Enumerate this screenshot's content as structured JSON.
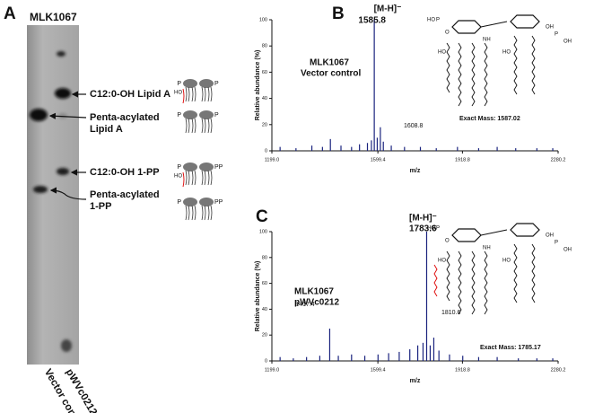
{
  "panels": [
    "A",
    "B",
    "C"
  ],
  "tlc": {
    "title": "MLK1067",
    "lanes": [
      "Vector control",
      "pWVc0212"
    ],
    "bands": [
      [
        "C12:0-OH Lipid A"
      ],
      [
        "Penta-acylated",
        "Lipid A"
      ],
      [
        "C12:0-OH 1-PP"
      ],
      [
        "Penta-acylated",
        "1-PP"
      ]
    ],
    "icon_labels": [
      "P",
      "P",
      "HO",
      "P",
      "P",
      "P",
      "PP",
      "HO",
      "P",
      "PP"
    ]
  },
  "structure_labels": [
    "HO",
    "P",
    "O",
    "OH",
    "NH",
    "P",
    "OH",
    "HO",
    "HO"
  ],
  "chart_data": [
    {
      "type": "stem",
      "ylabel": "Relative abundance (%)",
      "xlabel": "m/z",
      "strain": [
        "MLK1067",
        "Vector control"
      ],
      "peak_tag": "[M-H]⁻",
      "exact_mass": "Exact Mass:  1587.02",
      "color": "#1a237e",
      "x": [
        1230,
        1290,
        1350,
        1390,
        1420,
        1460,
        1500,
        1530,
        1560,
        1575,
        1585.8,
        1597,
        1608.8,
        1620,
        1650,
        1700,
        1760,
        1820,
        1900,
        1980,
        2050,
        2120,
        2200,
        2260
      ],
      "values": [
        3,
        2,
        4,
        3,
        9,
        4,
        3,
        5,
        6,
        8,
        100,
        10,
        18,
        7,
        4,
        3,
        3,
        2,
        3,
        2,
        3,
        2,
        2,
        2
      ],
      "xlim": [
        1199,
        2280.2
      ],
      "xticks": [
        {
          "value": 1199,
          "label": "1199.0"
        },
        1599.4,
        1918.8,
        2280.2
      ],
      "ylim": [
        0,
        100
      ],
      "yticks": [
        0,
        20,
        40,
        60,
        80,
        100
      ]
    },
    {
      "type": "stem",
      "ylabel": "Relative abundance (%)",
      "xlabel": "m/z",
      "strain": [
        "MLK1067",
        "pWVc0212"
      ],
      "peak_tag": "[M-H]⁻",
      "exact_mass": "Exact Mass:  1785.17",
      "color": "#1a237e",
      "x": [
        1230,
        1280,
        1330,
        1380,
        1417.4,
        1450,
        1500,
        1550,
        1600,
        1640,
        1680,
        1720,
        1750,
        1770,
        1783.6,
        1797,
        1810.6,
        1830,
        1870,
        1920,
        1980,
        2050,
        2130,
        2200,
        2260
      ],
      "values": [
        3,
        2,
        3,
        4,
        25,
        4,
        5,
        4,
        5,
        6,
        7,
        9,
        12,
        14,
        100,
        12,
        18,
        8,
        5,
        4,
        3,
        3,
        2,
        2,
        2
      ],
      "xlim": [
        1199,
        2280.2
      ],
      "xticks": [
        {
          "value": 1199,
          "label": "1199.0"
        },
        1599.4,
        1918.8,
        2280.2
      ],
      "ylim": [
        0,
        100
      ],
      "yticks": [
        0,
        20,
        40,
        60,
        80,
        100
      ]
    }
  ]
}
